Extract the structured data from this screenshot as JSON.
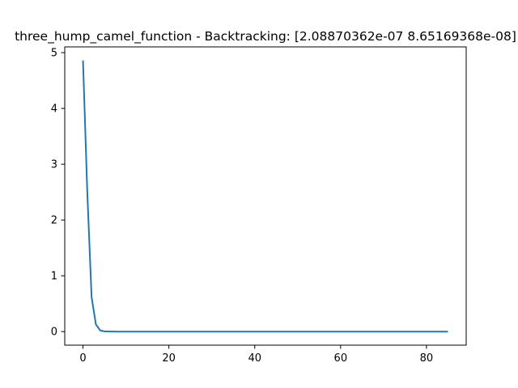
{
  "chart_data": {
    "type": "line",
    "title": "three_hump_camel_function - Backtracking: [2.08870362e-07 8.65169368e-08]",
    "xlabel": "",
    "ylabel": "",
    "xlim": [
      -4.25,
      89.25
    ],
    "ylim": [
      -0.243,
      5.103
    ],
    "grid": false,
    "legend": "none",
    "x_ticks": [
      0,
      20,
      40,
      60,
      80
    ],
    "x_tick_labels": [
      "0",
      "20",
      "40",
      "60",
      "80"
    ],
    "y_ticks": [
      0,
      1,
      2,
      3,
      4,
      5
    ],
    "y_tick_labels": [
      "0",
      "1",
      "2",
      "3",
      "4",
      "5"
    ],
    "series": [
      {
        "color": "#1f77b4",
        "x": [
          0,
          1,
          2,
          3,
          4,
          5,
          6,
          7,
          8,
          10,
          15,
          20,
          30,
          40,
          50,
          60,
          70,
          80,
          85
        ],
        "y": [
          4.86,
          2.5,
          0.62,
          0.13,
          0.02,
          0.005,
          0.002,
          0.001,
          0.0005,
          0.0002,
          0,
          0,
          0,
          0,
          0,
          0,
          0,
          0,
          0
        ]
      }
    ]
  }
}
